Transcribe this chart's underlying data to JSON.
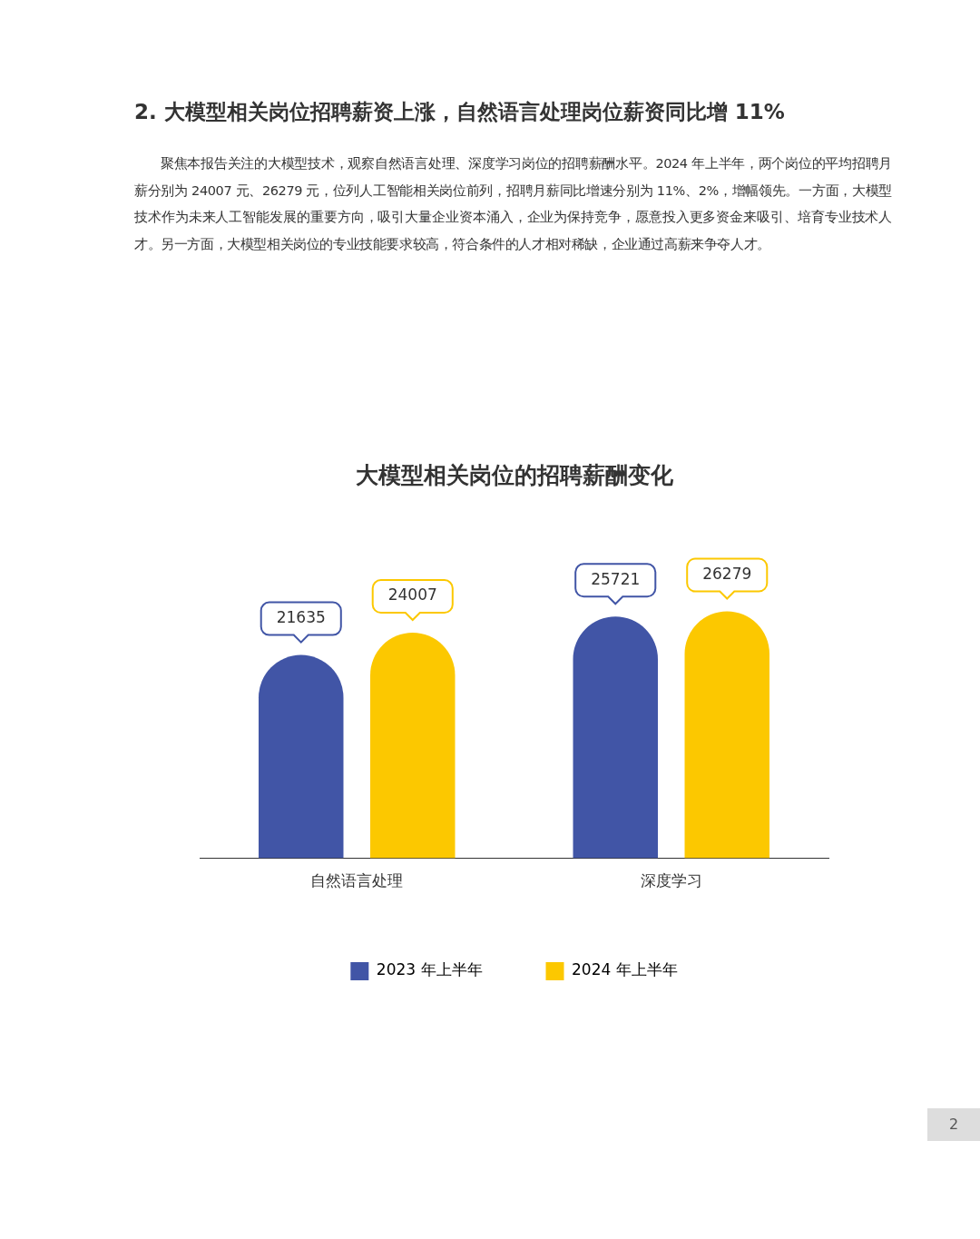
{
  "chart_data": {
    "type": "bar",
    "title": "大模型相关岗位的招聘薪酬变化",
    "categories": [
      "自然语言处理",
      "深度学习"
    ],
    "series": [
      {
        "name": "2023 年上半年",
        "color": "#4155a6",
        "values": [
          21635,
          25721
        ]
      },
      {
        "name": "2024 年上半年",
        "color": "#fcc800",
        "values": [
          24007,
          26279
        ]
      }
    ],
    "data_labels": true,
    "legend": "bottom",
    "grid": false,
    "annotations": [
      "2. 大模型相关岗位招聘薪资上涨，自然语言处理岗位薪资同比增 11%",
      "聚焦本报告关注的大模型技术，观察自然语言处理、深度学习岗位的招聘薪酬水平。2024 年上半年，两个岗位的平均招聘月薪分别为 24007 元、26279 元，位列人工智能相关岗位前列，招聘月薪同比增速分别为 11%、2%，增幅领先。一方面，大模型技术作为未来人工智能发展的重要方向，吸引大量企业资本涌入，企业为保持竞争，愿意投入更多资金来吸引、培育专业技术人才。另一方面，大模型相关岗位的专业技能要求较高，符合条件的人才相对稀缺，企业通过高薪来争夺人才。",
      "2"
    ]
  }
}
